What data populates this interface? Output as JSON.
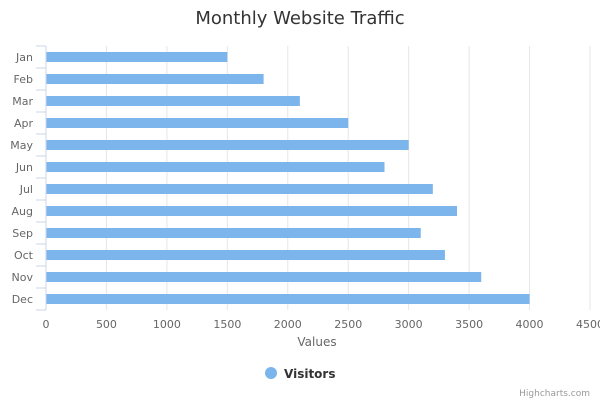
{
  "chart_data": {
    "type": "bar",
    "orientation": "horizontal",
    "title": "Monthly Website Traffic",
    "categories": [
      "Jan",
      "Feb",
      "Mar",
      "Apr",
      "May",
      "Jun",
      "Jul",
      "Aug",
      "Sep",
      "Oct",
      "Nov",
      "Dec"
    ],
    "series": [
      {
        "name": "Visitors",
        "values": [
          1500,
          1800,
          2100,
          2500,
          3000,
          2800,
          3200,
          3400,
          3100,
          3300,
          3600,
          4000
        ]
      }
    ],
    "xlabel": "Values",
    "ylabel": "",
    "xlim": [
      0,
      4500
    ],
    "x_ticks": [
      "0",
      "500",
      "1000",
      "1500",
      "2000",
      "2500",
      "3000",
      "3500",
      "4000",
      "4500"
    ],
    "grid": true,
    "legend_position": "bottom-center"
  },
  "colors": {
    "series": "#7cb5ec",
    "grid": "#e6e6e6",
    "axis": "#ccd6eb",
    "title": "#333333"
  },
  "credits": "Highcharts.com"
}
